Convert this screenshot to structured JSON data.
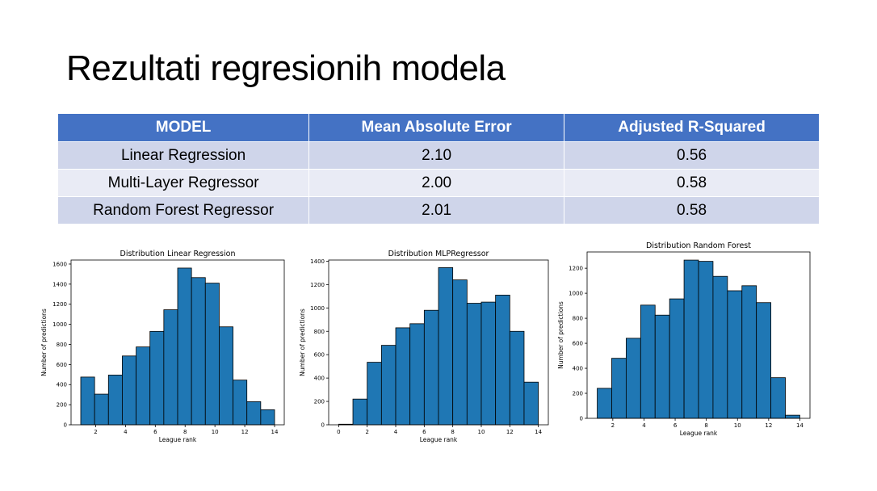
{
  "slide": {
    "title": "Rezultati regresionih modela"
  },
  "table": {
    "headers": [
      "MODEL",
      "Mean Absolute Error",
      "Adjusted R-Squared"
    ],
    "rows": [
      [
        "Linear Regression",
        "2.10",
        "0.56"
      ],
      [
        "Multi-Layer Regressor",
        "2.00",
        "0.58"
      ],
      [
        "Random Forest Regressor",
        "2.01",
        "0.58"
      ]
    ]
  },
  "colors": {
    "header": "#4472c4",
    "row_odd": "#cfd5ea",
    "row_even": "#e9ebf5",
    "bar": "#1f77b4"
  },
  "chart_data": [
    {
      "type": "bar",
      "title": "Distribution Linear Regression",
      "xlabel": "League rank",
      "ylabel": "Number of predictions",
      "xlim": [
        0.35,
        14.65
      ],
      "ylim": [
        0,
        1640
      ],
      "xticks": [
        2,
        4,
        6,
        8,
        10,
        12,
        14
      ],
      "yticks": [
        0,
        200,
        400,
        600,
        800,
        1000,
        1200,
        1400,
        1600
      ],
      "bin_edges": [
        1.0,
        1.929,
        2.857,
        3.786,
        4.714,
        5.643,
        6.571,
        7.5,
        8.429,
        9.357,
        10.286,
        11.214,
        12.143,
        13.071,
        14.0
      ],
      "values": [
        475,
        305,
        495,
        685,
        775,
        930,
        1145,
        1560,
        1465,
        1410,
        975,
        445,
        230,
        150
      ]
    },
    {
      "type": "bar",
      "title": "Distribution MLPRegressor",
      "xlabel": "League rank",
      "ylabel": "Number of predictions",
      "xlim": [
        -0.7,
        14.7
      ],
      "ylim": [
        0,
        1410
      ],
      "xticks": [
        0,
        2,
        4,
        6,
        8,
        10,
        12,
        14
      ],
      "yticks": [
        0,
        200,
        400,
        600,
        800,
        1000,
        1200,
        1400
      ],
      "bin_edges": [
        0.0,
        1.0,
        2.0,
        3.0,
        4.0,
        5.0,
        6.0,
        7.0,
        8.0,
        9.0,
        10.0,
        11.0,
        12.0,
        13.0,
        14.0
      ],
      "values": [
        5,
        220,
        535,
        680,
        830,
        865,
        980,
        1345,
        1240,
        1040,
        1050,
        1110,
        800,
        365
      ]
    },
    {
      "type": "bar",
      "title": "Distribution Random Forest",
      "xlabel": "League rank",
      "ylabel": "Number of predictions",
      "xlim": [
        0.35,
        14.65
      ],
      "ylim": [
        0,
        1330
      ],
      "xticks": [
        2,
        4,
        6,
        8,
        10,
        12,
        14
      ],
      "yticks": [
        0,
        200,
        400,
        600,
        800,
        1000,
        1200
      ],
      "bin_edges": [
        1.0,
        1.929,
        2.857,
        3.786,
        4.714,
        5.643,
        6.571,
        7.5,
        8.429,
        9.357,
        10.286,
        11.214,
        12.143,
        13.071,
        14.0
      ],
      "values": [
        240,
        480,
        640,
        905,
        825,
        955,
        1265,
        1255,
        1135,
        1020,
        1060,
        925,
        325,
        25
      ]
    }
  ]
}
